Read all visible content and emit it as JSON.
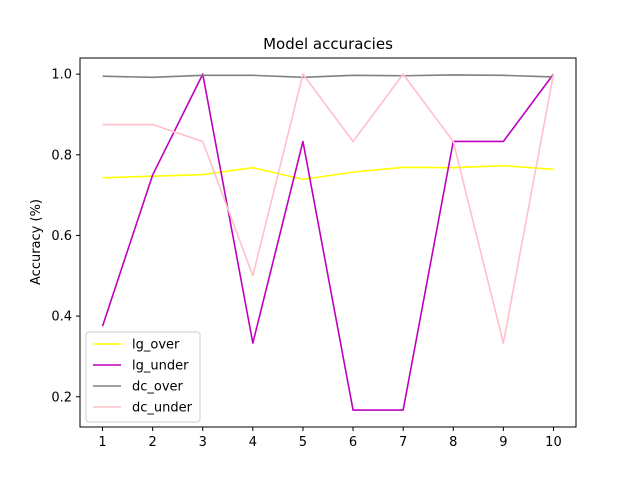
{
  "chart_data": {
    "type": "line",
    "title": "Model accuracies",
    "xlabel": "",
    "ylabel": "Accuracy (%)",
    "x": [
      1,
      2,
      3,
      4,
      5,
      6,
      7,
      8,
      9,
      10
    ],
    "xticks": [
      "1",
      "2",
      "3",
      "4",
      "5",
      "6",
      "7",
      "8",
      "9",
      "10"
    ],
    "yticks": [
      "0.2",
      "0.4",
      "0.6",
      "0.8",
      "1.0"
    ],
    "ytick_values": [
      0.2,
      0.4,
      0.6,
      0.8,
      1.0
    ],
    "xlim": [
      0.55,
      10.45
    ],
    "ylim": [
      0.125,
      1.04
    ],
    "grid": false,
    "legend_position": "lower-left",
    "series": [
      {
        "name": "lg_over",
        "color": "#ffff00",
        "values": [
          0.743,
          0.747,
          0.751,
          0.768,
          0.739,
          0.757,
          0.769,
          0.768,
          0.773,
          0.764
        ]
      },
      {
        "name": "lg_under",
        "color": "#bf00bf",
        "values": [
          0.375,
          0.75,
          1.0,
          0.333,
          0.833,
          0.167,
          0.167,
          0.833,
          0.833,
          1.0
        ]
      },
      {
        "name": "dc_over",
        "color": "#808080",
        "values": [
          0.995,
          0.992,
          0.997,
          0.997,
          0.992,
          0.997,
          0.996,
          0.998,
          0.997,
          0.993
        ]
      },
      {
        "name": "dc_under",
        "color": "#ffc0cb",
        "values": [
          0.875,
          0.875,
          0.833,
          0.5,
          1.0,
          0.833,
          1.0,
          0.833,
          0.333,
          1.0
        ]
      }
    ]
  }
}
